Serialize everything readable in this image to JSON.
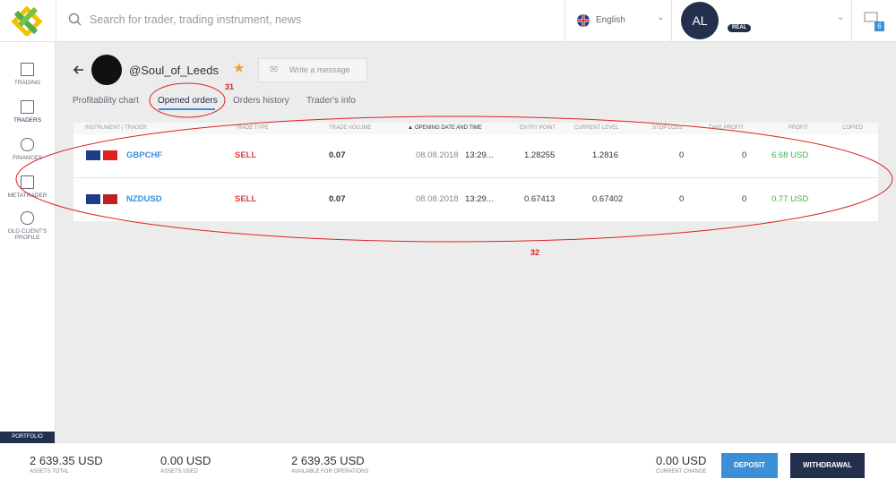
{
  "header": {
    "search_placeholder": "Search for trader, trading instrument, news",
    "language": "English",
    "avatar": "AL",
    "account_type": "REAL",
    "notifications": "6"
  },
  "sidebar": [
    "TRADING",
    "TRADERS",
    "FINANCES",
    "METATRADER",
    "OLD CLIENT'S PROFILE"
  ],
  "profile": {
    "name": "@Soul_of_Leeds",
    "message_button": "Write a message"
  },
  "tabs": [
    "Profitability chart",
    "Opened orders",
    "Orders history",
    "Trader's info"
  ],
  "annotations": [
    "31",
    "32"
  ],
  "table": {
    "columns": [
      "INSTRUMENT | TRADER",
      "TRADE TYPE",
      "TRADE VOLUME",
      "OPENING DATE AND TIME",
      "ENTRY POINT",
      "CURRENT LEVEL",
      "STOP LOSS",
      "TAKE PROFIT",
      "PROFIT",
      "COPIED"
    ],
    "rows": [
      [
        "GBPCHF",
        "SELL",
        "0.07",
        "08.08.2018",
        "13:29...",
        "1.28255",
        "1.2816",
        "0",
        "0",
        "6.68 USD"
      ],
      [
        "NZDUSD",
        "SELL",
        "0.07",
        "08.08.2018",
        "13:29...",
        "0.67413",
        "0.67402",
        "0",
        "0",
        "0.77 USD"
      ]
    ]
  },
  "footer": {
    "portfolio": "PORTFOLIO",
    "stats": [
      {
        "value": "2 639.35 USD",
        "label": "ASSETS TOTAL"
      },
      {
        "value": "0.00 USD",
        "label": "ASSETS USED"
      },
      {
        "value": "2 639.35 USD",
        "label": "AVAILABLE FOR OPERATIONS"
      }
    ],
    "change": {
      "value": "0.00 USD",
      "label": "CURRENT CHANGE"
    },
    "deposit": "DEPOSIT",
    "withdrawal": "WITHDRAWAL"
  }
}
